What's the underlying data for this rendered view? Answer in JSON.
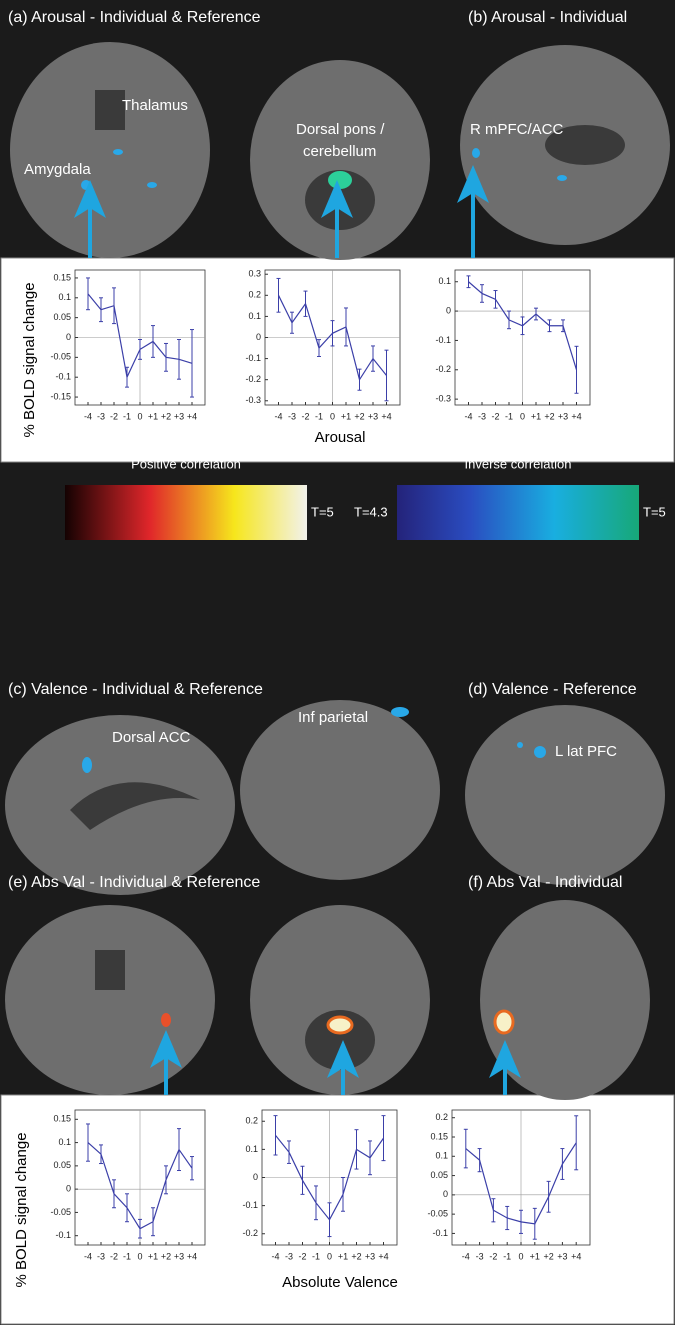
{
  "panels": {
    "a": "(a) Arousal - Individual & Reference",
    "b": "(b) Arousal - Individual",
    "c": "(c) Valence - Individual & Reference",
    "d": "(d) Valence - Reference",
    "e": "(e) Abs Val - Individual & Reference",
    "f": "(f) Abs Val - Individual"
  },
  "regions": {
    "thalamus": "Thalamus",
    "amygdala": "Amygdala",
    "pons1": "Dorsal pons /",
    "pons2": "cerebellum",
    "mpfc": "R mPFC/ACC",
    "dacc": "Dorsal ACC",
    "parietal": "Inf parietal",
    "latpfc": "L lat PFC"
  },
  "colorbars": {
    "positive": {
      "title": "Positive correlation",
      "max": "T=5"
    },
    "inverse": {
      "title": "Inverse correlation",
      "min": "T=4.3",
      "max": "T=5"
    }
  },
  "axes": {
    "ylabel_top": "% BOLD signal change",
    "xlabel_top": "Arousal",
    "ylabel_bottom": "% BOLD signal change",
    "xlabel_bottom": "Absolute Valence"
  },
  "chart_data": [
    {
      "type": "line",
      "color": "#3b3fa8",
      "categories": [
        "-4",
        "-3",
        "-2",
        "-1",
        "0",
        "+1",
        "+2",
        "+3",
        "+4"
      ],
      "values": [
        0.11,
        0.07,
        0.08,
        -0.1,
        -0.03,
        -0.01,
        -0.05,
        -0.055,
        -0.065
      ],
      "errors": [
        0.04,
        0.03,
        0.045,
        0.025,
        0.025,
        0.04,
        0.035,
        0.05,
        0.085
      ],
      "ylim": [
        -0.17,
        0.17
      ],
      "yticks": [
        -0.15,
        -0.1,
        -0.05,
        0,
        0.05,
        0.1,
        0.15
      ]
    },
    {
      "type": "line",
      "color": "#3b3fa8",
      "categories": [
        "-4",
        "-3",
        "-2",
        "-1",
        "0",
        "+1",
        "+2",
        "+3",
        "+4"
      ],
      "values": [
        0.2,
        0.07,
        0.16,
        -0.05,
        0.02,
        0.05,
        -0.2,
        -0.1,
        -0.18
      ],
      "errors": [
        0.08,
        0.05,
        0.06,
        0.04,
        0.06,
        0.09,
        0.05,
        0.06,
        0.12
      ],
      "ylim": [
        -0.32,
        0.32
      ],
      "yticks": [
        -0.3,
        -0.2,
        -0.1,
        0,
        0.1,
        0.2,
        0.3
      ]
    },
    {
      "type": "line",
      "color": "#3b3fa8",
      "categories": [
        "-4",
        "-3",
        "-2",
        "-1",
        "0",
        "+1",
        "+2",
        "+3",
        "+4"
      ],
      "values": [
        0.1,
        0.06,
        0.04,
        -0.03,
        -0.05,
        -0.01,
        -0.05,
        -0.05,
        -0.2
      ],
      "errors": [
        0.02,
        0.03,
        0.03,
        0.03,
        0.03,
        0.02,
        0.02,
        0.02,
        0.08
      ],
      "ylim": [
        -0.32,
        0.14
      ],
      "yticks": [
        -0.3,
        -0.2,
        -0.1,
        0,
        0.1
      ]
    },
    {
      "type": "line",
      "color": "#3b3fa8",
      "categories": [
        "-4",
        "-3",
        "-2",
        "-1",
        "0",
        "+1",
        "+2",
        "+3",
        "+4"
      ],
      "values": [
        0.1,
        0.075,
        -0.01,
        -0.04,
        -0.085,
        -0.07,
        0.02,
        0.085,
        0.045
      ],
      "errors": [
        0.04,
        0.02,
        0.03,
        0.03,
        0.02,
        0.03,
        0.03,
        0.045,
        0.025
      ],
      "ylim": [
        -0.12,
        0.17
      ],
      "yticks": [
        -0.1,
        -0.05,
        0,
        0.05,
        0.1,
        0.15
      ]
    },
    {
      "type": "line",
      "color": "#3b3fa8",
      "categories": [
        "-4",
        "-3",
        "-2",
        "-1",
        "0",
        "+1",
        "+2",
        "+3",
        "+4"
      ],
      "values": [
        0.15,
        0.09,
        -0.01,
        -0.09,
        -0.15,
        -0.06,
        0.1,
        0.07,
        0.14
      ],
      "errors": [
        0.07,
        0.04,
        0.05,
        0.06,
        0.06,
        0.06,
        0.07,
        0.06,
        0.08
      ],
      "ylim": [
        -0.24,
        0.24
      ],
      "yticks": [
        -0.2,
        -0.1,
        0,
        0.1,
        0.2
      ]
    },
    {
      "type": "line",
      "color": "#3b3fa8",
      "categories": [
        "-4",
        "-3",
        "-2",
        "-1",
        "0",
        "+1",
        "+2",
        "+3",
        "+4"
      ],
      "values": [
        0.12,
        0.09,
        -0.04,
        -0.06,
        -0.07,
        -0.075,
        -0.005,
        0.08,
        0.135
      ],
      "errors": [
        0.05,
        0.03,
        0.03,
        0.03,
        0.03,
        0.04,
        0.04,
        0.04,
        0.07
      ],
      "ylim": [
        -0.13,
        0.22
      ],
      "yticks": [
        -0.1,
        -0.05,
        0,
        0.05,
        0.1,
        0.15,
        0.2
      ]
    }
  ]
}
